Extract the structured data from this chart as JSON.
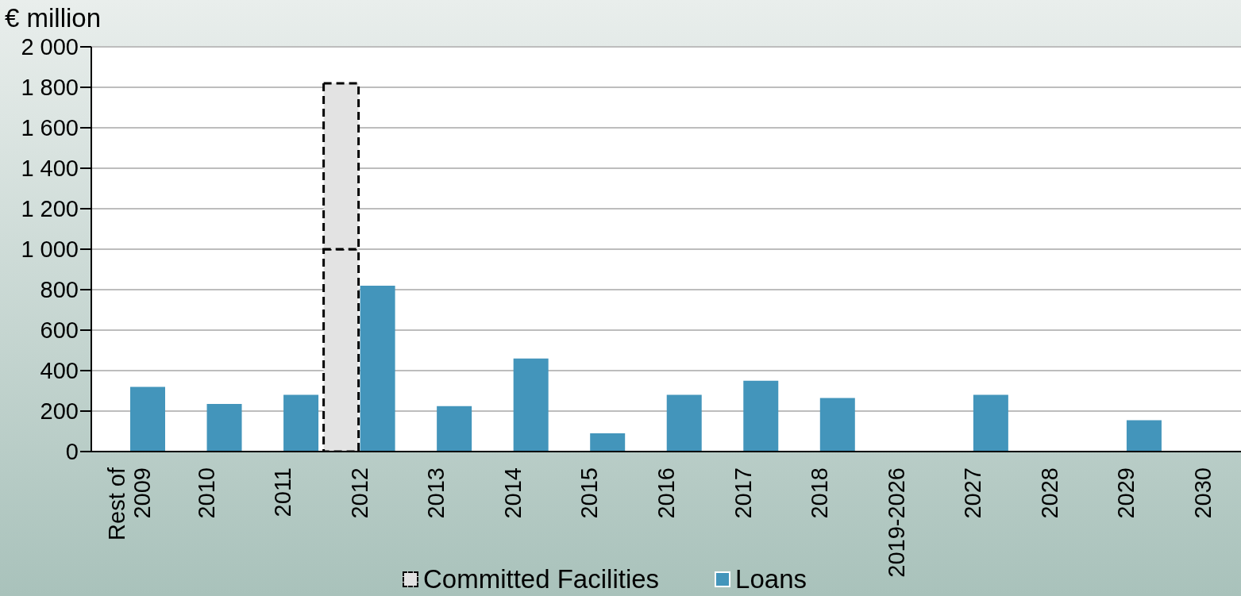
{
  "chart_data": {
    "type": "bar",
    "ylabel": "€ million",
    "categories": [
      "Rest of\n2009",
      "2010",
      "2011",
      "2012",
      "2013",
      "2014",
      "2015",
      "2016",
      "2017",
      "2018",
      "2019-2026",
      "2027",
      "2028",
      "2029",
      "2030"
    ],
    "series": [
      {
        "name": "Committed Facilities",
        "color": "#e3e3e3",
        "line_style": "dashed",
        "values": [
          null,
          null,
          null,
          1000,
          null,
          null,
          null,
          null,
          null,
          null,
          null,
          null,
          null,
          null,
          null
        ]
      },
      {
        "color": "#e3e3e3",
        "line_style": "dashed",
        "base": [
          null,
          null,
          null,
          1000,
          null,
          null,
          null,
          null,
          null,
          null,
          null,
          null,
          null,
          null,
          null
        ],
        "values": [
          null,
          null,
          null,
          820,
          null,
          null,
          null,
          null,
          null,
          null,
          null,
          null,
          null,
          null,
          null
        ]
      },
      {
        "name": "Loans",
        "color": "#4395bb",
        "values": [
          320,
          235,
          280,
          820,
          225,
          460,
          90,
          280,
          350,
          265,
          null,
          280,
          null,
          155,
          null
        ]
      }
    ],
    "ylim": [
      0,
      2000
    ],
    "yticks": [
      0,
      200,
      400,
      600,
      800,
      {
        "value": 1000,
        "label": "1 000"
      },
      {
        "value": 1200,
        "label": "1 200"
      },
      {
        "value": 1400,
        "label": "1 400"
      },
      {
        "value": 1600,
        "label": "1 600"
      },
      {
        "value": 1800,
        "label": "1 800"
      },
      {
        "value": 2000,
        "label": "2 000"
      }
    ],
    "grid": "y",
    "legend": "bottom"
  }
}
